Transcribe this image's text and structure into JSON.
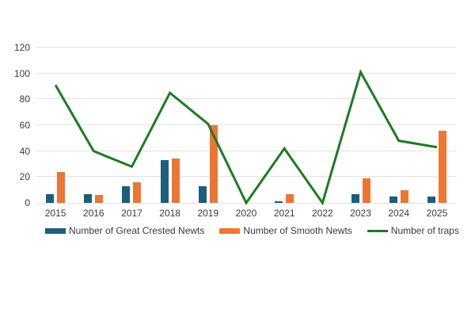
{
  "colors": {
    "great_crested": "#1b5e7e",
    "smooth": "#ed7633",
    "traps": "#1e7b24",
    "gridline": "#e2e2e2",
    "axis_text": "#3a3a3a",
    "background": "#ffffff"
  },
  "chart_data": {
    "type": "combo",
    "title": "",
    "xlabel": "",
    "ylabel": "",
    "categories": [
      "2015",
      "2016",
      "2017",
      "2018",
      "2019",
      "2020",
      "2021",
      "2022",
      "2023",
      "2024",
      "2025"
    ],
    "series": [
      {
        "name": "Number of Great Crested Newts",
        "type": "bar",
        "color_key": "great_crested",
        "values": [
          7,
          7,
          13,
          33,
          13,
          0,
          1,
          0,
          7,
          5,
          5
        ]
      },
      {
        "name": "Number of Smooth Newts",
        "type": "bar",
        "color_key": "smooth",
        "values": [
          24,
          6,
          16,
          34,
          60,
          0,
          7,
          0,
          19,
          10,
          56
        ]
      },
      {
        "name": "Number of traps",
        "type": "line",
        "color_key": "traps",
        "values": [
          91,
          40,
          28,
          85,
          61,
          0,
          42,
          0,
          101,
          48,
          43
        ]
      }
    ],
    "ylim": [
      0,
      120
    ],
    "yticks": [
      0,
      20,
      40,
      60,
      80,
      100,
      120
    ],
    "grid": true,
    "legend_position": "bottom"
  }
}
